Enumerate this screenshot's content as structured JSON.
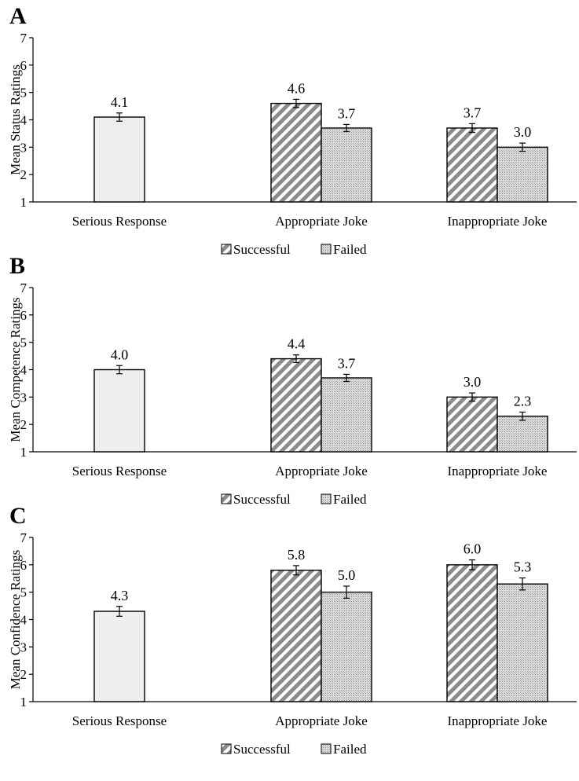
{
  "legend": {
    "successful_label": "Successful",
    "failed_label": "Failed"
  },
  "colors": {
    "serious_fill": "#eeeeee",
    "successful_fill": "#9e9e9e",
    "failed_fill": "#c9c9c9",
    "axis": "#000000"
  },
  "chart_data": [
    {
      "panel_label": "A",
      "type": "bar",
      "ylabel": "Mean Status Ratings",
      "ylim": [
        1,
        7
      ],
      "yticks": [
        1,
        2,
        3,
        4,
        5,
        6,
        7
      ],
      "grid": false,
      "legend_position": "bottom",
      "categories": [
        "Serious Response",
        "Appropriate Joke",
        "Inappropriate Joke"
      ],
      "series": [
        {
          "name": "",
          "pattern": "serious",
          "values": [
            4.1,
            null,
            null
          ],
          "labels": [
            "4.1",
            "",
            ""
          ],
          "errors": [
            0.15,
            null,
            null
          ]
        },
        {
          "name": "Successful",
          "pattern": "successful",
          "values": [
            null,
            4.6,
            3.7
          ],
          "labels": [
            "",
            "4.6",
            "3.7"
          ],
          "errors": [
            null,
            0.15,
            0.16
          ]
        },
        {
          "name": "Failed",
          "pattern": "failed",
          "values": [
            null,
            3.7,
            3.0
          ],
          "labels": [
            "",
            "3.7",
            "3.0"
          ],
          "errors": [
            null,
            0.13,
            0.15
          ]
        }
      ]
    },
    {
      "panel_label": "B",
      "type": "bar",
      "ylabel": "Mean Competence Ratings",
      "ylim": [
        1,
        7
      ],
      "yticks": [
        1,
        2,
        3,
        4,
        5,
        6,
        7
      ],
      "grid": false,
      "legend_position": "bottom",
      "categories": [
        "Serious Response",
        "Appropriate Joke",
        "Inappropriate Joke"
      ],
      "series": [
        {
          "name": "",
          "pattern": "serious",
          "values": [
            4.0,
            null,
            null
          ],
          "labels": [
            "4.0",
            "",
            ""
          ],
          "errors": [
            0.15,
            null,
            null
          ]
        },
        {
          "name": "Successful",
          "pattern": "successful",
          "values": [
            null,
            4.4,
            3.0
          ],
          "labels": [
            "",
            "4.4",
            "3.0"
          ],
          "errors": [
            null,
            0.14,
            0.15
          ]
        },
        {
          "name": "Failed",
          "pattern": "failed",
          "values": [
            null,
            3.7,
            2.3
          ],
          "labels": [
            "",
            "3.7",
            "2.3"
          ],
          "errors": [
            null,
            0.13,
            0.15
          ]
        }
      ]
    },
    {
      "panel_label": "C",
      "type": "bar",
      "ylabel": "Mean Confidence Ratings",
      "ylim": [
        1,
        7
      ],
      "yticks": [
        1,
        2,
        3,
        4,
        5,
        6,
        7
      ],
      "grid": false,
      "legend_position": "bottom",
      "categories": [
        "Serious Response",
        "Appropriate Joke",
        "Inappropriate Joke"
      ],
      "series": [
        {
          "name": "",
          "pattern": "serious",
          "values": [
            4.3,
            null,
            null
          ],
          "labels": [
            "4.3",
            "",
            ""
          ],
          "errors": [
            0.18,
            null,
            null
          ]
        },
        {
          "name": "Successful",
          "pattern": "successful",
          "values": [
            null,
            5.8,
            6.0
          ],
          "labels": [
            "",
            "5.8",
            "6.0"
          ],
          "errors": [
            null,
            0.17,
            0.18
          ]
        },
        {
          "name": "Failed",
          "pattern": "failed",
          "values": [
            null,
            5.0,
            5.3
          ],
          "labels": [
            "",
            "5.0",
            "5.3"
          ],
          "errors": [
            null,
            0.22,
            0.22
          ]
        }
      ]
    }
  ]
}
